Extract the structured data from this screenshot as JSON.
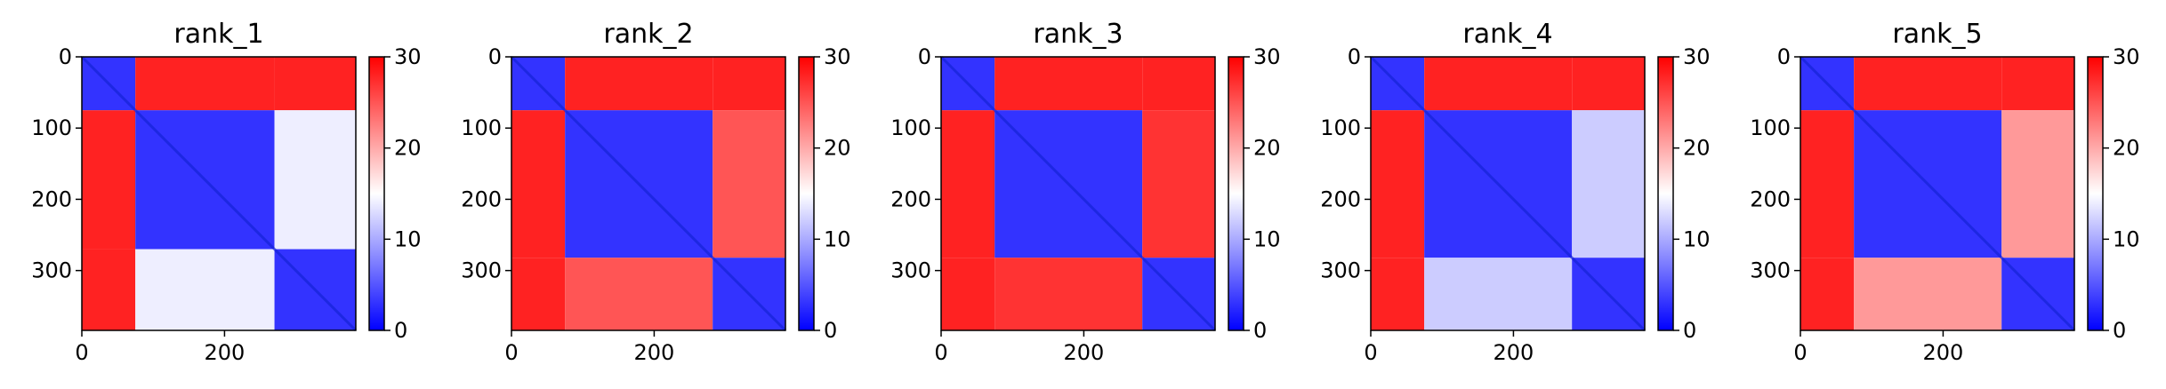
{
  "chart_data": [
    {
      "type": "heatmap",
      "title": "rank_1",
      "x_ticks": [
        "0",
        "200"
      ],
      "y_ticks": [
        "0",
        "100",
        "200",
        "300"
      ],
      "n": 384,
      "blocks": [
        [
          0,
          75
        ],
        [
          75,
          270
        ],
        [
          270,
          384
        ]
      ],
      "block_levels": [
        [
          3,
          28,
          28
        ],
        [
          28,
          3,
          14
        ],
        [
          28,
          14,
          3
        ]
      ],
      "colorbar": {
        "ticks": [
          "0",
          "10",
          "20",
          "30"
        ],
        "min": 0,
        "max": 30
      }
    },
    {
      "type": "heatmap",
      "title": "rank_2",
      "x_ticks": [
        "0",
        "200"
      ],
      "y_ticks": [
        "0",
        "100",
        "200",
        "300"
      ],
      "n": 384,
      "blocks": [
        [
          0,
          75
        ],
        [
          75,
          282
        ],
        [
          282,
          384
        ]
      ],
      "block_levels": [
        [
          3,
          28,
          28
        ],
        [
          28,
          3,
          25
        ],
        [
          28,
          25,
          3
        ]
      ],
      "colorbar": {
        "ticks": [
          "0",
          "10",
          "20",
          "30"
        ],
        "min": 0,
        "max": 30
      }
    },
    {
      "type": "heatmap",
      "title": "rank_3",
      "x_ticks": [
        "0",
        "200"
      ],
      "y_ticks": [
        "0",
        "100",
        "200",
        "300"
      ],
      "n": 384,
      "blocks": [
        [
          0,
          75
        ],
        [
          75,
          282
        ],
        [
          282,
          384
        ]
      ],
      "block_levels": [
        [
          3,
          28,
          28
        ],
        [
          28,
          3,
          27
        ],
        [
          28,
          27,
          3
        ]
      ],
      "colorbar": {
        "ticks": [
          "0",
          "10",
          "20",
          "30"
        ],
        "min": 0,
        "max": 30
      }
    },
    {
      "type": "heatmap",
      "title": "rank_4",
      "x_ticks": [
        "0",
        "200"
      ],
      "y_ticks": [
        "0",
        "100",
        "200",
        "300"
      ],
      "n": 384,
      "blocks": [
        [
          0,
          75
        ],
        [
          75,
          282
        ],
        [
          282,
          384
        ]
      ],
      "block_levels": [
        [
          3,
          28,
          28
        ],
        [
          28,
          3,
          12
        ],
        [
          28,
          12,
          3
        ]
      ],
      "colorbar": {
        "ticks": [
          "0",
          "10",
          "20",
          "30"
        ],
        "min": 0,
        "max": 30
      }
    },
    {
      "type": "heatmap",
      "title": "rank_5",
      "x_ticks": [
        "0",
        "200"
      ],
      "y_ticks": [
        "0",
        "100",
        "200",
        "300"
      ],
      "n": 384,
      "blocks": [
        [
          0,
          75
        ],
        [
          75,
          282
        ],
        [
          282,
          384
        ]
      ],
      "block_levels": [
        [
          3,
          28,
          28
        ],
        [
          28,
          3,
          21
        ],
        [
          28,
          21,
          3
        ]
      ],
      "colorbar": {
        "ticks": [
          "0",
          "10",
          "20",
          "30"
        ],
        "min": 0,
        "max": 30
      }
    }
  ],
  "colormap": {
    "name": "bwr",
    "low": "#0000ff",
    "mid": "#ffffff",
    "high": "#ff0000"
  }
}
